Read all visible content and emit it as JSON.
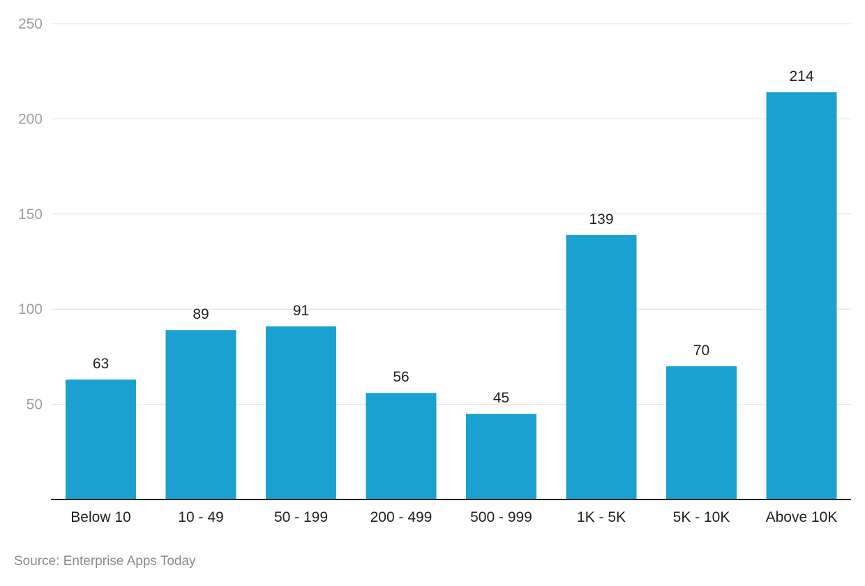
{
  "chart_data": {
    "type": "bar",
    "categories": [
      "Below 10",
      "10 - 49",
      "50 - 199",
      "200 - 499",
      "500 - 999",
      "1K - 5K",
      "5K - 10K",
      "Above 10K"
    ],
    "values": [
      63,
      89,
      91,
      56,
      45,
      139,
      70,
      214
    ],
    "data_labels": [
      "63",
      "89",
      "91",
      "56",
      "45",
      "139",
      "70",
      "214"
    ],
    "title": "",
    "xlabel": "",
    "ylabel": "",
    "ylim": [
      0,
      250
    ],
    "yticks": [
      50,
      100,
      150,
      200,
      250
    ],
    "grid": true,
    "legend": "none",
    "bar_color": "#1aa1cf"
  },
  "source": "Source: Enterprise Apps Today"
}
